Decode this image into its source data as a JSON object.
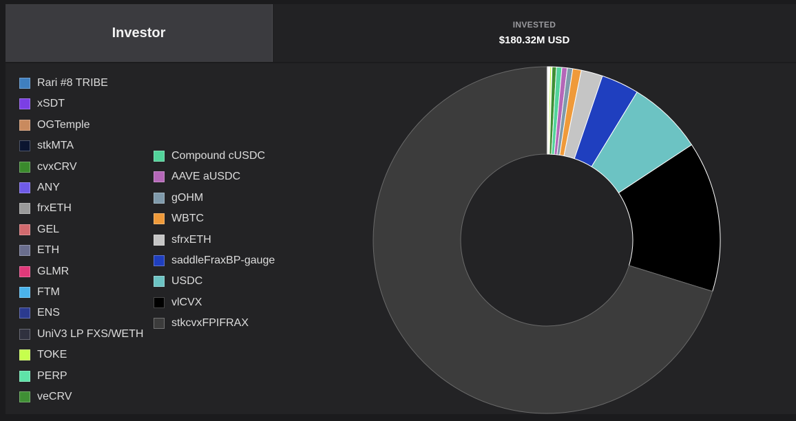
{
  "header": {
    "tab_label": "Investor",
    "invested_label": "INVESTED",
    "invested_value": "$180.32M USD"
  },
  "chart_data": {
    "type": "pie",
    "donut": true,
    "legend_placement": "left",
    "total_label": "$180.32M USD",
    "slices": [
      {
        "name": "Rari #8 TRIBE",
        "value": 0.02,
        "color": "#3f7fbf"
      },
      {
        "name": "xSDT",
        "value": 0.02,
        "color": "#7b3fe4"
      },
      {
        "name": "OGTemple",
        "value": 0.02,
        "color": "#c98a5e"
      },
      {
        "name": "stkMTA",
        "value": 0.02,
        "color": "#0b1530"
      },
      {
        "name": "cvxCRV",
        "value": 0.05,
        "color": "#3a8a2c"
      },
      {
        "name": "ANY",
        "value": 0.02,
        "color": "#6f5be8"
      },
      {
        "name": "frxETH",
        "value": 0.02,
        "color": "#9a9a9a"
      },
      {
        "name": "GEL",
        "value": 0.02,
        "color": "#d26a6e"
      },
      {
        "name": "ETH",
        "value": 0.02,
        "color": "#6a6e8e"
      },
      {
        "name": "GLMR",
        "value": 0.02,
        "color": "#e0397a"
      },
      {
        "name": "FTM",
        "value": 0.02,
        "color": "#4ab3ec"
      },
      {
        "name": "ENS",
        "value": 0.02,
        "color": "#2b3a8f"
      },
      {
        "name": "UniV3 LP FXS/WETH",
        "value": 0.02,
        "color": "#30313f"
      },
      {
        "name": "TOKE",
        "value": 0.15,
        "color": "#c6ff4d"
      },
      {
        "name": "PERP",
        "value": 0.05,
        "color": "#5ee3a8"
      },
      {
        "name": "veCRV",
        "value": 0.4,
        "color": "#3f8f34"
      },
      {
        "name": "Compound cUSDC",
        "value": 0.5,
        "color": "#52d39a"
      },
      {
        "name": "AAVE aUSDC",
        "value": 0.5,
        "color": "#b467b8"
      },
      {
        "name": "gOHM",
        "value": 0.5,
        "color": "#7f9aab"
      },
      {
        "name": "WBTC",
        "value": 0.8,
        "color": "#ef9a3a"
      },
      {
        "name": "sfrxETH",
        "value": 2.0,
        "color": "#c5c5c5"
      },
      {
        "name": "saddleFraxBP-gauge",
        "value": 3.5,
        "color": "#1f3fbf"
      },
      {
        "name": "USDC",
        "value": 7.0,
        "color": "#6cc3c3"
      },
      {
        "name": "vlCVX",
        "value": 14.0,
        "color": "#000000"
      },
      {
        "name": "stkcvxFPIFRAX",
        "value": 70.0,
        "color": "#3c3c3c"
      }
    ]
  }
}
